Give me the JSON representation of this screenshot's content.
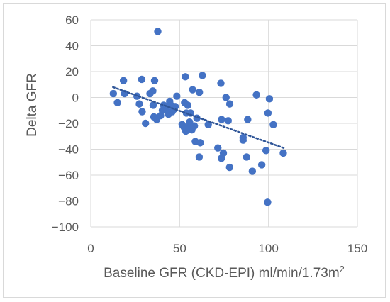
{
  "chart_data": {
    "type": "scatter",
    "title": "",
    "xlabel": "Baseline GFR (CKD-EPI) ml/min/1.73m",
    "xlabel_superscript": "2",
    "ylabel": "Delta GFR",
    "xlim": [
      0,
      150
    ],
    "ylim": [
      -100,
      60
    ],
    "x_ticks": [
      0,
      50,
      100,
      150
    ],
    "y_ticks": [
      60,
      40,
      20,
      0,
      -20,
      -40,
      -60,
      -80,
      -100
    ],
    "x_tick_labels": [
      "0",
      "50",
      "100",
      "150"
    ],
    "y_tick_labels": [
      "60",
      "40",
      "20",
      "0",
      "−20",
      "−40",
      "−60",
      "−80",
      "−100"
    ],
    "grid": "major gridlines on both axes",
    "marker_color": "#4472c4",
    "trendline": {
      "type": "linear",
      "style": "dotted",
      "color": "#2f5597",
      "x_range": [
        12.5,
        108.5
      ],
      "y_start": 8,
      "y_end": -39
    },
    "points": [
      {
        "x": 12.7,
        "y": 3
      },
      {
        "x": 15,
        "y": -4
      },
      {
        "x": 18.4,
        "y": 13
      },
      {
        "x": 19,
        "y": 3
      },
      {
        "x": 26,
        "y": 1
      },
      {
        "x": 27.3,
        "y": -5
      },
      {
        "x": 28.7,
        "y": 14
      },
      {
        "x": 28.9,
        "y": -11
      },
      {
        "x": 30.8,
        "y": -20
      },
      {
        "x": 33.3,
        "y": 3
      },
      {
        "x": 34.9,
        "y": 5
      },
      {
        "x": 35.1,
        "y": -6
      },
      {
        "x": 35.5,
        "y": -15
      },
      {
        "x": 35.9,
        "y": 13
      },
      {
        "x": 37.1,
        "y": -17
      },
      {
        "x": 37.7,
        "y": 51
      },
      {
        "x": 39.3,
        "y": -14
      },
      {
        "x": 40.3,
        "y": -10
      },
      {
        "x": 41,
        "y": -6
      },
      {
        "x": 42.1,
        "y": -7
      },
      {
        "x": 43.2,
        "y": -11
      },
      {
        "x": 43.7,
        "y": -13
      },
      {
        "x": 44.4,
        "y": -3
      },
      {
        "x": 45.1,
        "y": -6
      },
      {
        "x": 45.8,
        "y": -11
      },
      {
        "x": 46.9,
        "y": -9
      },
      {
        "x": 47.5,
        "y": -7
      },
      {
        "x": 48.4,
        "y": 1
      },
      {
        "x": 51.4,
        "y": -21
      },
      {
        "x": 52.5,
        "y": -23
      },
      {
        "x": 52.8,
        "y": -4
      },
      {
        "x": 53.2,
        "y": 16
      },
      {
        "x": 53.5,
        "y": -26
      },
      {
        "x": 53.8,
        "y": -12
      },
      {
        "x": 54.6,
        "y": -6
      },
      {
        "x": 55,
        "y": -23
      },
      {
        "x": 55.6,
        "y": -19
      },
      {
        "x": 56.2,
        "y": -12
      },
      {
        "x": 56.9,
        "y": -25
      },
      {
        "x": 57.3,
        "y": 6
      },
      {
        "x": 58.3,
        "y": -22
      },
      {
        "x": 58.8,
        "y": -34
      },
      {
        "x": 59.7,
        "y": -16
      },
      {
        "x": 61.1,
        "y": 4
      },
      {
        "x": 61.6,
        "y": -35
      },
      {
        "x": 61,
        "y": -46
      },
      {
        "x": 62.8,
        "y": 17
      },
      {
        "x": 66.1,
        "y": -21
      },
      {
        "x": 71.5,
        "y": -39
      },
      {
        "x": 73.2,
        "y": 11
      },
      {
        "x": 73.6,
        "y": -17
      },
      {
        "x": 73.5,
        "y": -47
      },
      {
        "x": 74.6,
        "y": -43
      },
      {
        "x": 76.1,
        "y": 0
      },
      {
        "x": 77.3,
        "y": -18
      },
      {
        "x": 78.2,
        "y": -5
      },
      {
        "x": 78.1,
        "y": -54
      },
      {
        "x": 85.7,
        "y": -31
      },
      {
        "x": 85.7,
        "y": -33
      },
      {
        "x": 87.7,
        "y": -46
      },
      {
        "x": 88.3,
        "y": -17
      },
      {
        "x": 90.9,
        "y": -57
      },
      {
        "x": 93.2,
        "y": 2
      },
      {
        "x": 96.2,
        "y": -52
      },
      {
        "x": 98.6,
        "y": -41
      },
      {
        "x": 99.5,
        "y": -81
      },
      {
        "x": 99.7,
        "y": -12
      },
      {
        "x": 100.5,
        "y": -1
      },
      {
        "x": 102.7,
        "y": -21
      },
      {
        "x": 108.3,
        "y": -43
      }
    ]
  }
}
